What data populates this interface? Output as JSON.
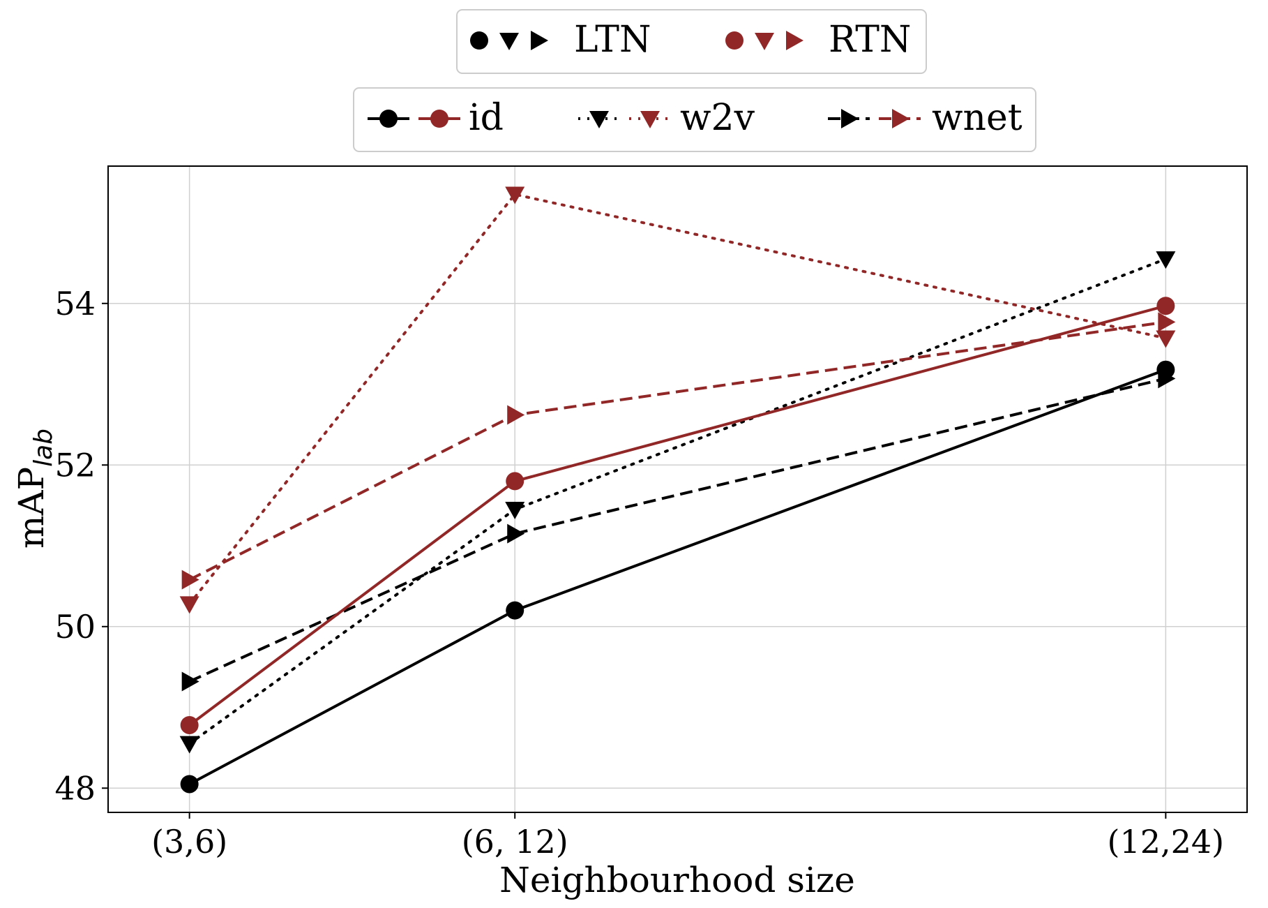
{
  "chart_data": {
    "type": "line",
    "title": "",
    "xlabel": "Neighbourhood size",
    "ylabel": "mAP",
    "ylabel_subscript": "lab",
    "categories": [
      "(3,6)",
      "(6, 12)",
      "(12,24)"
    ],
    "x": [
      6,
      12,
      24
    ],
    "xlim": [
      4.5,
      25.5
    ],
    "ylim": [
      47.7,
      55.7
    ],
    "yticks": [
      48,
      50,
      52,
      54
    ],
    "grid": true,
    "colors": {
      "LTN": "#000000",
      "RTN": "#922727"
    },
    "legend_models": {
      "placement": "top",
      "entries": [
        {
          "name": "LTN"
        },
        {
          "name": "RTN"
        }
      ]
    },
    "legend_methods": {
      "placement": "top",
      "entries": [
        {
          "name": "id",
          "marker": "circle",
          "dash": "solid"
        },
        {
          "name": "w2v",
          "marker": "triangle-down",
          "dash": "dotted"
        },
        {
          "name": "wnet",
          "marker": "triangle-right",
          "dash": "dashed"
        }
      ]
    },
    "series": [
      {
        "name": "LTN id",
        "model": "LTN",
        "method": "id",
        "marker": "circle",
        "dash": "solid",
        "values": [
          48.05,
          50.2,
          53.18
        ]
      },
      {
        "name": "LTN w2v",
        "model": "LTN",
        "method": "w2v",
        "marker": "triangle-down",
        "dash": "dotted",
        "values": [
          48.55,
          51.45,
          54.55
        ]
      },
      {
        "name": "LTN wnet",
        "model": "LTN",
        "method": "wnet",
        "marker": "triangle-right",
        "dash": "dashed",
        "values": [
          49.32,
          51.15,
          53.07
        ]
      },
      {
        "name": "RTN id",
        "model": "RTN",
        "method": "id",
        "marker": "circle",
        "dash": "solid",
        "values": [
          48.78,
          51.8,
          53.97
        ]
      },
      {
        "name": "RTN w2v",
        "model": "RTN",
        "method": "w2v",
        "marker": "triangle-down",
        "dash": "dotted",
        "values": [
          50.28,
          55.35,
          53.57
        ]
      },
      {
        "name": "RTN wnet",
        "model": "RTN",
        "method": "wnet",
        "marker": "triangle-right",
        "dash": "dashed",
        "values": [
          50.58,
          52.62,
          53.77
        ]
      }
    ]
  }
}
